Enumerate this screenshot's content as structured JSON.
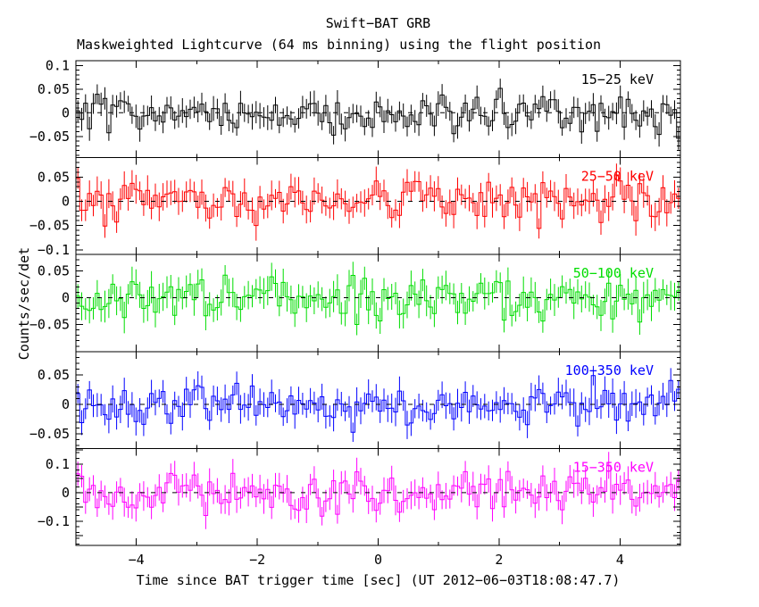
{
  "header": {
    "title": "Swift−BAT GRB",
    "subtitle": "Maskweighted Lightcurve (64 ms binning) using the flight position"
  },
  "chart_data": {
    "type": "line",
    "style": "five vertically stacked stepped-histogram lightcurve panels with vertical error bars, inward ticks, dashed zero line in each panel",
    "title": "Swift−BAT GRB",
    "subtitle": "Maskweighted Lightcurve (64 ms binning) using the flight position",
    "xlabel": "Time since BAT trigger time [sec] (UT 2012−06−03T18:08:47.7)",
    "ylabel": "Counts/sec/det",
    "x_range": [
      -5,
      5
    ],
    "bin_width_sec": 0.064,
    "n_bins": 156,
    "x_ticks": [
      {
        "v": -4,
        "label": "−4"
      },
      {
        "v": -2,
        "label": "−2"
      },
      {
        "v": 0,
        "label": "0"
      },
      {
        "v": 2,
        "label": "2"
      },
      {
        "v": 4,
        "label": "4"
      }
    ],
    "x_minor_step": 1,
    "grid": false,
    "legend_position": "inside top-right of each panel",
    "zero_line": {
      "style": "dashed",
      "color": "#000000",
      "y": 0
    },
    "data_note": "All five energy bands show zero-mean mask-weighted background noise (no burst structure visible); series are re-synthesized as seeded Gaussian noise with the per-panel parameters below.",
    "panels": [
      {
        "label": "15−25 keV",
        "color": "#000000",
        "ylim": [
          -0.095,
          0.11
        ],
        "major_step": 0.05,
        "minor_step": 0.01,
        "yticks": [
          {
            "v": 0.1,
            "label": "0.1"
          },
          {
            "v": 0.05,
            "label": "0.05"
          },
          {
            "v": 0,
            "label": "0"
          },
          {
            "v": -0.05,
            "label": "−0.05"
          }
        ],
        "mean": 0,
        "sigma": 0.02,
        "err": 0.022,
        "seed": 101
      },
      {
        "label": "25−50 keV",
        "color": "#ff0000",
        "ylim": [
          -0.11,
          0.09
        ],
        "major_step": 0.05,
        "minor_step": 0.01,
        "yticks": [
          {
            "v": 0.05,
            "label": "0.05"
          },
          {
            "v": 0,
            "label": "0"
          },
          {
            "v": -0.05,
            "label": "−0.05"
          },
          {
            "v": -0.1,
            "label": "−0.1"
          }
        ],
        "mean": 0,
        "sigma": 0.024,
        "err": 0.025,
        "seed": 202
      },
      {
        "label": "50−100 keV",
        "color": "#00dd00",
        "ylim": [
          -0.1,
          0.08
        ],
        "major_step": 0.05,
        "minor_step": 0.01,
        "yticks": [
          {
            "v": 0.05,
            "label": "0.05"
          },
          {
            "v": 0,
            "label": "0"
          },
          {
            "v": -0.05,
            "label": "−0.05"
          }
        ],
        "mean": 0,
        "sigma": 0.022,
        "err": 0.024,
        "seed": 303
      },
      {
        "label": "100−350 keV",
        "color": "#0000ff",
        "ylim": [
          -0.075,
          0.09
        ],
        "major_step": 0.05,
        "minor_step": 0.01,
        "yticks": [
          {
            "v": 0.05,
            "label": "0.05"
          },
          {
            "v": 0,
            "label": "0"
          },
          {
            "v": -0.05,
            "label": "−0.05"
          }
        ],
        "mean": 0,
        "sigma": 0.016,
        "err": 0.02,
        "seed": 404
      },
      {
        "label": "15−350 keV",
        "color": "#ff00ff",
        "ylim": [
          -0.185,
          0.155
        ],
        "major_step": 0.05,
        "minor_step": 0.02,
        "yticks": [
          {
            "v": 0.1,
            "label": "0.1"
          },
          {
            "v": 0,
            "label": "0"
          },
          {
            "v": -0.1,
            "label": "−0.1"
          }
        ],
        "mean": 0,
        "sigma": 0.038,
        "err": 0.042,
        "seed": 505
      }
    ]
  }
}
